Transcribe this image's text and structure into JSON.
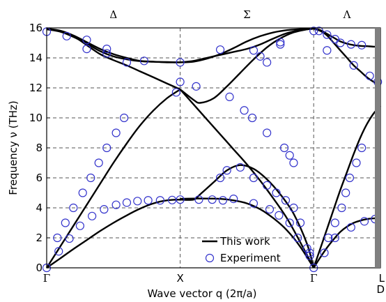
{
  "chart_data": {
    "type": "line",
    "title": "",
    "xlabel": "Wave vector q (2π/a)",
    "ylabel": "Frequency ν (THz)",
    "ylim": [
      0,
      16
    ],
    "yticks": [
      0,
      2,
      4,
      6,
      8,
      10,
      12,
      14,
      16
    ],
    "x_points": [
      {
        "label": "Γ",
        "pos": 0
      },
      {
        "label": "X",
        "pos": 1
      },
      {
        "label": "Γ",
        "pos": 2.0
      },
      {
        "label": "L",
        "pos": 2.5
      }
    ],
    "x_points_extra": "D",
    "regions": [
      {
        "label": "Δ",
        "pos": 0.5
      },
      {
        "label": "Σ",
        "pos": 1.5
      },
      {
        "label": "Λ",
        "pos": 2.25
      }
    ],
    "grid": true,
    "legend_position": "bottom-center",
    "legend": [
      {
        "label": "This work",
        "style": "line"
      },
      {
        "label": "Experiment",
        "style": "marker"
      }
    ],
    "colors": {
      "line": "#000000",
      "marker": "#3333cc",
      "grid": "#555555",
      "right_band": "#808080"
    },
    "series": [
      {
        "type": "line",
        "points": [
          [
            0,
            0
          ],
          [
            0.1,
            0.62
          ],
          [
            0.2,
            1.25
          ],
          [
            0.3,
            1.85
          ],
          [
            0.4,
            2.45
          ],
          [
            0.5,
            3.0
          ],
          [
            0.6,
            3.5
          ],
          [
            0.7,
            3.95
          ],
          [
            0.8,
            4.3
          ],
          [
            0.9,
            4.5
          ],
          [
            1.0,
            4.55
          ]
        ]
      },
      {
        "type": "line",
        "points": [
          [
            0,
            0
          ],
          [
            0.1,
            1.4
          ],
          [
            0.2,
            2.8
          ],
          [
            0.3,
            4.2
          ],
          [
            0.4,
            5.6
          ],
          [
            0.5,
            7.0
          ],
          [
            0.6,
            8.3
          ],
          [
            0.7,
            9.5
          ],
          [
            0.8,
            10.5
          ],
          [
            0.9,
            11.3
          ],
          [
            1.0,
            11.9
          ]
        ]
      },
      {
        "type": "line",
        "points": [
          [
            0,
            15.95
          ],
          [
            0.1,
            15.82
          ],
          [
            0.2,
            15.5
          ],
          [
            0.3,
            15.05
          ],
          [
            0.4,
            14.6
          ],
          [
            0.5,
            14.25
          ],
          [
            0.6,
            14.0
          ],
          [
            0.7,
            13.8
          ],
          [
            0.8,
            13.75
          ],
          [
            0.9,
            13.7
          ],
          [
            1.0,
            13.7
          ]
        ]
      },
      {
        "type": "line",
        "points": [
          [
            0,
            15.9
          ],
          [
            0.1,
            15.75
          ],
          [
            0.2,
            15.4
          ],
          [
            0.3,
            14.95
          ],
          [
            0.4,
            14.45
          ],
          [
            0.5,
            14.1
          ],
          [
            0.6,
            13.9
          ],
          [
            0.7,
            13.78
          ],
          [
            0.8,
            13.74
          ],
          [
            0.9,
            13.72
          ],
          [
            1.0,
            13.7
          ]
        ]
      },
      {
        "type": "line",
        "points": [
          [
            0,
            15.95
          ],
          [
            0.1,
            15.8
          ],
          [
            0.2,
            15.45
          ],
          [
            0.3,
            14.85
          ],
          [
            0.4,
            14.25
          ],
          [
            0.5,
            13.85
          ],
          [
            0.6,
            13.5
          ],
          [
            0.7,
            13.1
          ],
          [
            0.8,
            12.7
          ],
          [
            0.9,
            12.3
          ],
          [
            1.0,
            11.9
          ]
        ]
      },
      {
        "type": "line",
        "points": [
          [
            1.0,
            4.6
          ],
          [
            1.1,
            4.62
          ],
          [
            1.2,
            4.62
          ],
          [
            1.3,
            4.6
          ],
          [
            1.4,
            4.5
          ],
          [
            1.5,
            4.3
          ],
          [
            1.6,
            3.9
          ],
          [
            1.7,
            3.3
          ],
          [
            1.8,
            2.5
          ],
          [
            1.9,
            1.4
          ],
          [
            2.0,
            0
          ]
        ]
      },
      {
        "type": "line",
        "points": [
          [
            1.0,
            4.55
          ],
          [
            1.1,
            4.55
          ],
          [
            1.15,
            4.9
          ],
          [
            1.25,
            5.7
          ],
          [
            1.35,
            6.5
          ],
          [
            1.45,
            6.85
          ],
          [
            1.55,
            6.6
          ],
          [
            1.65,
            5.9
          ],
          [
            1.75,
            4.9
          ],
          [
            1.85,
            3.6
          ],
          [
            1.95,
            1.6
          ],
          [
            2.0,
            0
          ]
        ]
      },
      {
        "type": "line",
        "points": [
          [
            1.0,
            11.9
          ],
          [
            1.1,
            10.9
          ],
          [
            1.2,
            9.9
          ],
          [
            1.3,
            8.9
          ],
          [
            1.4,
            7.9
          ],
          [
            1.5,
            6.9
          ],
          [
            1.6,
            5.8
          ],
          [
            1.7,
            4.6
          ],
          [
            1.8,
            3.3
          ],
          [
            1.9,
            1.7
          ],
          [
            2.0,
            0
          ]
        ]
      },
      {
        "type": "line",
        "points": [
          [
            1.0,
            11.9
          ],
          [
            1.1,
            11.2
          ],
          [
            1.15,
            11.0
          ],
          [
            1.25,
            11.3
          ],
          [
            1.35,
            12.1
          ],
          [
            1.45,
            13.0
          ],
          [
            1.55,
            13.9
          ],
          [
            1.65,
            14.7
          ],
          [
            1.75,
            15.3
          ],
          [
            1.85,
            15.7
          ],
          [
            1.95,
            15.9
          ],
          [
            2.0,
            15.95
          ]
        ]
      },
      {
        "type": "line",
        "points": [
          [
            1.0,
            13.7
          ],
          [
            1.1,
            13.8
          ],
          [
            1.2,
            14.0
          ],
          [
            1.3,
            14.2
          ],
          [
            1.4,
            14.4
          ],
          [
            1.5,
            14.6
          ],
          [
            1.6,
            14.9
          ],
          [
            1.7,
            15.3
          ],
          [
            1.8,
            15.65
          ],
          [
            1.9,
            15.85
          ],
          [
            2.0,
            15.95
          ]
        ]
      },
      {
        "type": "line",
        "points": [
          [
            1.0,
            13.7
          ],
          [
            1.1,
            13.75
          ],
          [
            1.2,
            13.95
          ],
          [
            1.3,
            14.25
          ],
          [
            1.4,
            14.65
          ],
          [
            1.5,
            15.1
          ],
          [
            1.6,
            15.45
          ],
          [
            1.7,
            15.7
          ],
          [
            1.8,
            15.85
          ],
          [
            1.9,
            15.92
          ],
          [
            2.0,
            15.95
          ]
        ]
      },
      {
        "type": "line",
        "points": [
          [
            2.0,
            0
          ],
          [
            2.05,
            0.7
          ],
          [
            2.1,
            1.35
          ],
          [
            2.15,
            1.9
          ],
          [
            2.2,
            2.4
          ],
          [
            2.25,
            2.75
          ],
          [
            2.3,
            3.0
          ],
          [
            2.35,
            3.15
          ],
          [
            2.4,
            3.25
          ],
          [
            2.45,
            3.3
          ],
          [
            2.5,
            3.3
          ]
        ]
      },
      {
        "type": "line",
        "points": [
          [
            2.0,
            0
          ],
          [
            2.05,
            1.3
          ],
          [
            2.1,
            2.6
          ],
          [
            2.15,
            3.9
          ],
          [
            2.2,
            5.2
          ],
          [
            2.25,
            6.4
          ],
          [
            2.3,
            7.6
          ],
          [
            2.35,
            8.7
          ],
          [
            2.4,
            9.6
          ],
          [
            2.45,
            10.3
          ],
          [
            2.5,
            10.8
          ]
        ]
      },
      {
        "type": "line",
        "points": [
          [
            2.0,
            15.95
          ],
          [
            2.05,
            15.85
          ],
          [
            2.1,
            15.6
          ],
          [
            2.15,
            15.35
          ],
          [
            2.2,
            15.1
          ],
          [
            2.25,
            14.95
          ],
          [
            2.3,
            14.85
          ],
          [
            2.35,
            14.8
          ],
          [
            2.4,
            14.78
          ],
          [
            2.45,
            14.75
          ],
          [
            2.5,
            14.75
          ]
        ]
      },
      {
        "type": "line",
        "points": [
          [
            2.0,
            15.95
          ],
          [
            2.05,
            15.8
          ],
          [
            2.1,
            15.5
          ],
          [
            2.15,
            15.0
          ],
          [
            2.2,
            14.5
          ],
          [
            2.25,
            14.0
          ],
          [
            2.3,
            13.5
          ],
          [
            2.35,
            13.1
          ],
          [
            2.4,
            12.7
          ],
          [
            2.45,
            12.4
          ],
          [
            2.5,
            12.2
          ]
        ]
      },
      {
        "type": "scatter",
        "name": "Experiment",
        "points": [
          [
            0,
            0
          ],
          [
            0.09,
            1.1
          ],
          [
            0.17,
            1.95
          ],
          [
            0.25,
            2.8
          ],
          [
            0.34,
            3.45
          ],
          [
            0.43,
            3.9
          ],
          [
            0.52,
            4.2
          ],
          [
            0.6,
            4.35
          ],
          [
            0.68,
            4.45
          ],
          [
            0.76,
            4.5
          ],
          [
            0.85,
            4.5
          ],
          [
            0.94,
            4.52
          ],
          [
            1.0,
            4.55
          ],
          [
            0.08,
            2.0
          ],
          [
            0.14,
            3.0
          ],
          [
            0.2,
            4.0
          ],
          [
            0.27,
            5.0
          ],
          [
            0.33,
            6.0
          ],
          [
            0.39,
            7.0
          ],
          [
            0.45,
            8.0
          ],
          [
            0.52,
            9.0
          ],
          [
            0.58,
            10.0
          ],
          [
            0.97,
            11.7
          ],
          [
            1.0,
            12.4
          ],
          [
            0.0,
            15.75
          ],
          [
            0.15,
            15.45
          ],
          [
            0.3,
            15.2
          ],
          [
            0.3,
            14.6
          ],
          [
            0.45,
            14.6
          ],
          [
            0.45,
            14.3
          ],
          [
            0.6,
            13.7
          ],
          [
            0.73,
            13.8
          ],
          [
            1.0,
            13.7
          ],
          [
            1.12,
            12.1
          ],
          [
            1.3,
            14.55
          ],
          [
            1.55,
            14.5
          ],
          [
            1.6,
            14.1
          ],
          [
            1.65,
            13.7
          ],
          [
            1.75,
            15.05
          ],
          [
            1.75,
            14.9
          ],
          [
            1.37,
            11.4
          ],
          [
            1.48,
            10.5
          ],
          [
            1.54,
            10.0
          ],
          [
            1.65,
            9.0
          ],
          [
            1.78,
            8.0
          ],
          [
            1.82,
            7.5
          ],
          [
            1.85,
            7.0
          ],
          [
            1.14,
            4.55
          ],
          [
            1.24,
            4.55
          ],
          [
            1.32,
            4.5
          ],
          [
            1.4,
            4.6
          ],
          [
            1.55,
            4.3
          ],
          [
            1.67,
            3.9
          ],
          [
            1.74,
            3.5
          ],
          [
            1.82,
            3.0
          ],
          [
            1.88,
            2.0
          ],
          [
            1.95,
            1.3
          ],
          [
            1.97,
            0.8
          ],
          [
            2.0,
            0.0
          ],
          [
            1.3,
            6.0
          ],
          [
            1.35,
            6.5
          ],
          [
            1.45,
            6.7
          ],
          [
            1.55,
            6.0
          ],
          [
            1.65,
            5.5
          ],
          [
            1.72,
            5.0
          ],
          [
            1.79,
            4.5
          ],
          [
            1.85,
            4.0
          ],
          [
            1.9,
            3.0
          ],
          [
            1.97,
            1.0
          ],
          [
            2.0,
            15.8
          ],
          [
            2.04,
            15.8
          ],
          [
            2.1,
            15.55
          ],
          [
            2.16,
            15.25
          ],
          [
            2.2,
            15.0
          ],
          [
            2.28,
            14.9
          ],
          [
            2.36,
            14.85
          ],
          [
            2.1,
            14.5
          ],
          [
            2.3,
            13.5
          ],
          [
            2.42,
            12.8
          ],
          [
            2.48,
            12.4
          ],
          [
            2.08,
            1.0
          ],
          [
            2.11,
            2.0
          ],
          [
            2.16,
            3.0
          ],
          [
            2.21,
            4.0
          ],
          [
            2.24,
            5.0
          ],
          [
            2.27,
            6.0
          ],
          [
            2.32,
            7.0
          ],
          [
            2.36,
            8.0
          ],
          [
            2.16,
            2.0
          ],
          [
            2.28,
            2.7
          ],
          [
            2.38,
            3.1
          ],
          [
            2.46,
            3.25
          ]
        ]
      }
    ]
  }
}
